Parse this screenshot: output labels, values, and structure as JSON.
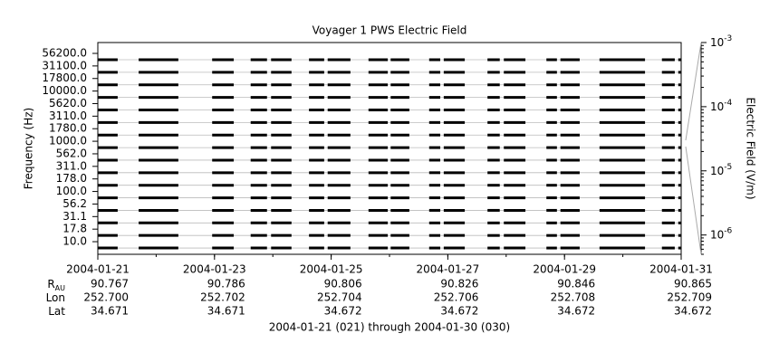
{
  "chart_data": {
    "type": "coverage",
    "title": "Voyager 1 PWS Electric Field",
    "ylabel": "Frequency (Hz)",
    "y2label": "Electric Field (V/m)",
    "channels": [
      "10.0",
      "17.8",
      "31.1",
      "56.2",
      "100.0",
      "178.0",
      "311.0",
      "562.0",
      "1000.0",
      "1780.0",
      "3110.0",
      "5620.0",
      "10000.0",
      "17800.0",
      "31100.0",
      "56200.0"
    ],
    "xlim": [
      21,
      31
    ],
    "xticks": [
      {
        "value": 21,
        "label": "2004-01-21"
      },
      {
        "value": 23,
        "label": "2004-01-23"
      },
      {
        "value": 25,
        "label": "2004-01-25"
      },
      {
        "value": 27,
        "label": "2004-01-27"
      },
      {
        "value": 29,
        "label": "2004-01-29"
      },
      {
        "value": 31,
        "label": "2004-01-31"
      }
    ],
    "coverage": [
      [
        21.0,
        21.34
      ],
      [
        21.7,
        22.38
      ],
      [
        22.96,
        23.33
      ],
      [
        23.62,
        23.9
      ],
      [
        23.97,
        24.32
      ],
      [
        24.62,
        24.88
      ],
      [
        24.94,
        25.33
      ],
      [
        25.64,
        25.97
      ],
      [
        26.02,
        26.34
      ],
      [
        26.68,
        26.87
      ],
      [
        26.93,
        27.29
      ],
      [
        27.68,
        27.89
      ],
      [
        27.96,
        28.33
      ],
      [
        28.69,
        28.87
      ],
      [
        28.93,
        29.26
      ],
      [
        29.6,
        30.38
      ],
      [
        30.67,
        30.89
      ],
      [
        30.95,
        31.0
      ]
    ],
    "color": "#000000",
    "y2scale": "log",
    "y2lim": [
      5e-07,
      0.001
    ],
    "y2ticks": [
      {
        "value": 1e-06,
        "label": "10",
        "exponent": "-6"
      },
      {
        "value": 1e-05,
        "label": "10",
        "exponent": "-5"
      },
      {
        "value": 0.0001,
        "label": "10",
        "exponent": "-4"
      },
      {
        "value": 0.001,
        "label": "10",
        "exponent": "-3"
      }
    ],
    "grid": true,
    "ephemeris": [
      {
        "label": "R",
        "sub": "AU",
        "values": [
          "90.767",
          "90.786",
          "90.806",
          "90.826",
          "90.846",
          "90.865"
        ]
      },
      {
        "label": "Lon",
        "values": [
          "252.700",
          "252.702",
          "252.704",
          "252.706",
          "252.708",
          "252.709"
        ]
      },
      {
        "label": "Lat",
        "values": [
          "34.671",
          "34.671",
          "34.672",
          "34.672",
          "34.672",
          "34.672"
        ]
      }
    ],
    "footer": "2004-01-21 (021) through 2004-01-30 (030)"
  }
}
